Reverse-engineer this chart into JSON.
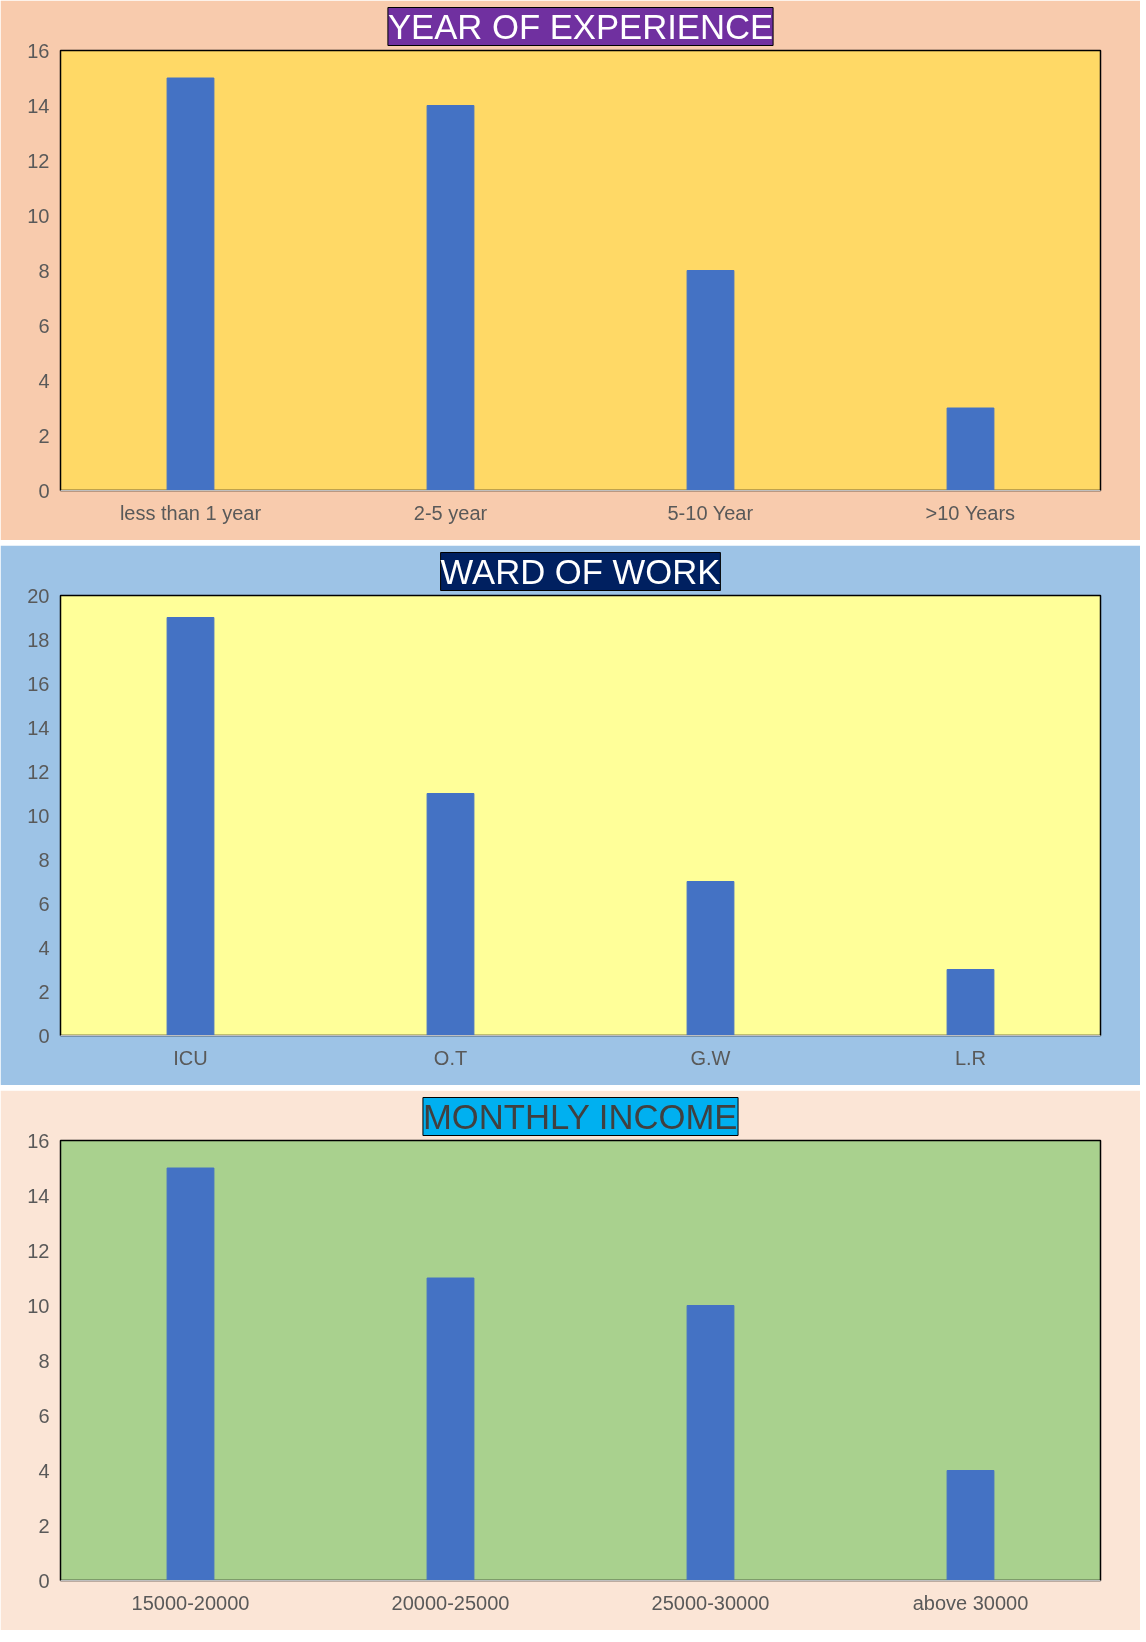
{
  "chart_data": [
    {
      "type": "bar",
      "title": "YEAR OF EXPERIENCE",
      "categories": [
        "less than 1 year",
        "2-5 year",
        "5-10 Year",
        ">10 Years"
      ],
      "values": [
        15,
        14,
        8,
        3
      ],
      "color": "#4472c4",
      "ylim": [
        0,
        16
      ],
      "yticks": [
        0,
        2,
        4,
        6,
        8,
        10,
        12,
        14,
        16
      ],
      "grid": false
    },
    {
      "type": "bar",
      "title": "WARD OF WORK",
      "categories": [
        "ICU",
        "O.T",
        "G.W",
        "L.R"
      ],
      "values": [
        19,
        11,
        7,
        3
      ],
      "color": "#4472c4",
      "ylim": [
        0,
        20
      ],
      "yticks": [
        0,
        2,
        4,
        6,
        8,
        10,
        12,
        14,
        16,
        18,
        20
      ],
      "grid": false
    },
    {
      "type": "bar",
      "title": "MONTHLY INCOME",
      "categories": [
        "15000-20000",
        "20000-25000",
        "25000-30000",
        "above 30000"
      ],
      "values": [
        15,
        11,
        10,
        4
      ],
      "color": "#4472c4",
      "ylim": [
        0,
        16
      ],
      "yticks": [
        0,
        2,
        4,
        6,
        8,
        10,
        12,
        14,
        16
      ],
      "grid": false
    }
  ]
}
